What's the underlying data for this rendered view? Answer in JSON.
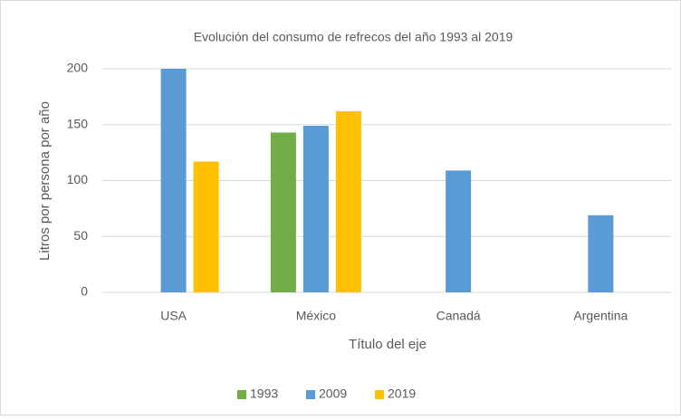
{
  "chart_data": {
    "type": "bar",
    "title": "Evolución del consumo de refrecos del año 1993 al 2019",
    "x_label": "Título del eje",
    "y_label": "Litros por persona por año",
    "categories": [
      "USA",
      "México",
      "Canadá",
      "Argentina"
    ],
    "series": [
      {
        "name": "1993",
        "color": "#70ad47",
        "values": [
          null,
          143,
          null,
          null
        ]
      },
      {
        "name": "2009",
        "color": "#5b9bd5",
        "values": [
          200,
          149,
          109,
          69
        ]
      },
      {
        "name": "2019",
        "color": "#ffc000",
        "values": [
          117,
          162,
          null,
          null
        ]
      }
    ],
    "ylim": [
      0,
      200
    ],
    "yticks": [
      0,
      50,
      100,
      150,
      200
    ],
    "grid": true,
    "legend": "bottom"
  }
}
